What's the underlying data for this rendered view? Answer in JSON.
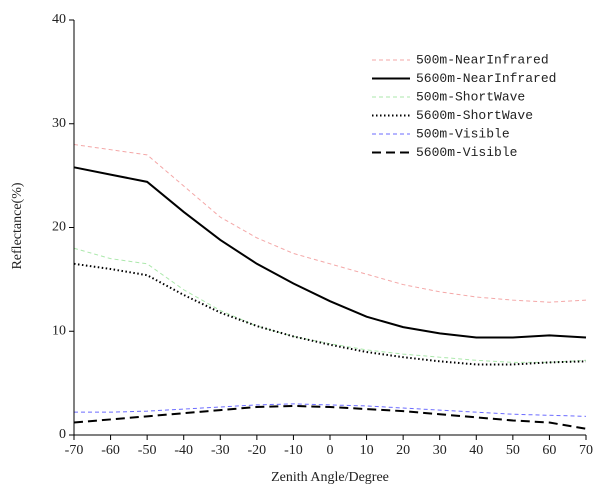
{
  "chart_data": {
    "type": "line",
    "x_label": "Zenith Angle/Degree",
    "y_label": "Reflectance(%)",
    "x": [
      -70,
      -60,
      -50,
      -40,
      -30,
      -20,
      -10,
      0,
      10,
      20,
      30,
      40,
      50,
      60,
      70
    ],
    "xlim": [
      -70,
      70
    ],
    "xticks": [
      -70,
      -60,
      -50,
      -40,
      -30,
      -20,
      -10,
      0,
      10,
      20,
      30,
      40,
      50,
      60,
      70
    ],
    "ylim": [
      0,
      40
    ],
    "yticks": [
      0,
      10,
      20,
      30,
      40
    ],
    "legend": "upper right",
    "series": [
      {
        "name": "500m-NearInfrared",
        "color": "#f08a8a",
        "style": "thin-dashed",
        "values": [
          28,
          27.5,
          27,
          24,
          21,
          19,
          17.5,
          16.5,
          15.5,
          14.5,
          13.8,
          13.3,
          13,
          12.8,
          13
        ]
      },
      {
        "name": "5600m-NearInfrared",
        "color": "#000000",
        "style": "solid",
        "values": [
          25.8,
          25.1,
          24.4,
          21.5,
          18.8,
          16.5,
          14.6,
          12.9,
          11.4,
          10.4,
          9.8,
          9.4,
          9.4,
          9.6,
          9.4
        ]
      },
      {
        "name": "500m-ShortWave",
        "color": "#8fe08f",
        "style": "thin-dashed",
        "values": [
          18,
          17,
          16.5,
          14,
          12,
          10.5,
          9.5,
          8.8,
          8.2,
          7.8,
          7.5,
          7.2,
          7,
          7,
          7.2
        ]
      },
      {
        "name": "5600m-ShortWave",
        "color": "#000000",
        "style": "dotted",
        "values": [
          16.5,
          16,
          15.4,
          13.5,
          11.8,
          10.5,
          9.5,
          8.7,
          8,
          7.5,
          7.1,
          6.8,
          6.8,
          7,
          7.1
        ]
      },
      {
        "name": "500m-Visible",
        "color": "#3a3aff",
        "style": "thin-dashed",
        "values": [
          2.2,
          2.2,
          2.3,
          2.5,
          2.7,
          2.9,
          3,
          2.9,
          2.8,
          2.6,
          2.4,
          2.2,
          2,
          1.9,
          1.8
        ]
      },
      {
        "name": "5600m-Visible",
        "color": "#000000",
        "style": "dashed",
        "values": [
          1.2,
          1.5,
          1.8,
          2.1,
          2.4,
          2.7,
          2.8,
          2.7,
          2.5,
          2.3,
          2,
          1.7,
          1.4,
          1.2,
          0.6
        ]
      }
    ]
  }
}
